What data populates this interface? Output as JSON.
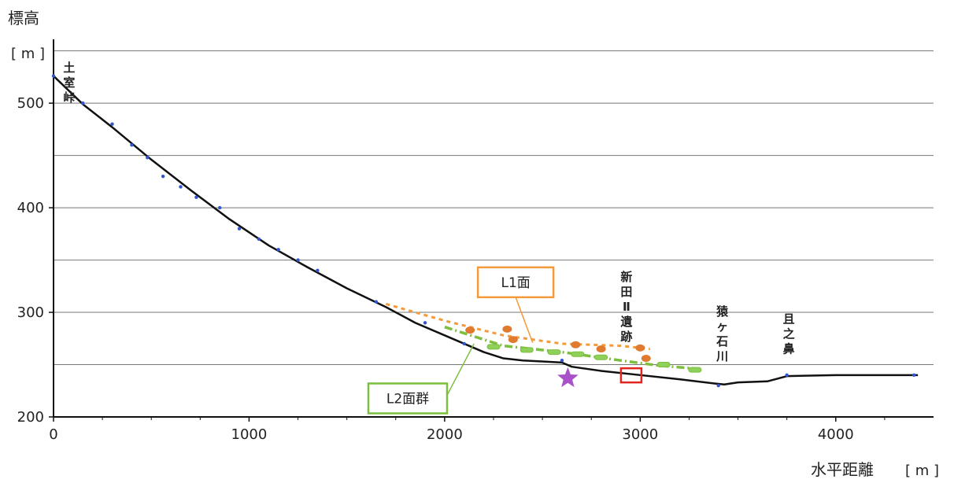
{
  "chart_data": {
    "type": "line",
    "ylabel": "標高",
    "yunit": "[ m ]",
    "xlabel": "水平距離",
    "xunit": "[ m ]",
    "xlim": [
      0,
      4500
    ],
    "ylim": [
      200,
      555
    ],
    "xticks": [
      0,
      1000,
      2000,
      3000,
      4000
    ],
    "yticks": [
      200,
      300,
      400,
      500
    ],
    "ygrid": [
      250,
      300,
      350,
      400,
      450,
      500,
      550
    ],
    "grid": "horizontal",
    "colors": {
      "profile": "#111111",
      "survey_points": "#3355cc",
      "l1": "#f39a3a",
      "l1_marker": "#e07a2e",
      "l2": "#7cbf3f",
      "l2_marker": "#8fd05a",
      "star": "#a951c8",
      "site": "#e0261e"
    },
    "series": [
      {
        "name": "",
        "role": "profile",
        "x": [
          0,
          150,
          300,
          500,
          700,
          900,
          1100,
          1300,
          1500,
          1700,
          1850,
          2000,
          2100,
          2200,
          2300,
          2400,
          2500,
          2600,
          2650,
          2800,
          3000,
          3200,
          3380,
          3430,
          3500,
          3650,
          3750,
          4000,
          4420
        ],
        "y": [
          526,
          499,
          477,
          446,
          417,
          389,
          364,
          343,
          323,
          305,
          290,
          278,
          270,
          262,
          256,
          254,
          253,
          252,
          248,
          244,
          240,
          236,
          232,
          231,
          233,
          234,
          239,
          240,
          240
        ]
      },
      {
        "name": "",
        "role": "survey_points",
        "x": [
          0,
          150,
          300,
          400,
          480,
          560,
          650,
          730,
          850,
          950,
          1050,
          1150,
          1250,
          1350,
          1650,
          1900,
          2100,
          2600,
          3400,
          3750,
          4400
        ],
        "y": [
          526,
          500,
          480,
          460,
          448,
          430,
          420,
          410,
          400,
          380,
          370,
          360,
          350,
          340,
          310,
          290,
          270,
          254,
          230,
          240,
          240
        ]
      },
      {
        "name": "L1面",
        "role": "l1",
        "x": [
          1700,
          2000,
          2300,
          2600,
          2900,
          3050
        ],
        "y": [
          308,
          292,
          278,
          270,
          268,
          265
        ]
      },
      {
        "name": "L2面群",
        "role": "l2",
        "x": [
          2000,
          2300,
          2600,
          2900,
          3100,
          3300
        ],
        "y": [
          286,
          268,
          262,
          254,
          249,
          246
        ]
      }
    ],
    "l1_markers": {
      "x": [
        2130,
        2320,
        2350,
        2670,
        2800,
        3000,
        3030
      ],
      "y": [
        283,
        284,
        274,
        269,
        265,
        266,
        256
      ]
    },
    "l2_markers": {
      "x": [
        2250,
        2420,
        2560,
        2680,
        2800,
        3120,
        3280
      ],
      "y": [
        267,
        264,
        262,
        260,
        257,
        250,
        245
      ]
    },
    "star": {
      "x": 2630,
      "y": 237
    },
    "site_box": {
      "x": 2950,
      "y": 239
    },
    "annotations": [
      {
        "text": "土室峠",
        "x": 80,
        "y": 530
      },
      {
        "text": "新田Ⅱ遺跡",
        "x": 2930,
        "y": 330
      },
      {
        "text": "猿ヶ石川",
        "x": 3420,
        "y": 297
      },
      {
        "text": "且之鼻",
        "x": 3760,
        "y": 290
      }
    ],
    "callouts": [
      {
        "text": "L1面",
        "target_x": 2450,
        "target_y": 271,
        "box_x": 2170,
        "box_y": 343
      },
      {
        "text": "L2面群",
        "target_x": 2150,
        "target_y": 270,
        "box_x": 1610,
        "box_y": 232
      }
    ]
  }
}
